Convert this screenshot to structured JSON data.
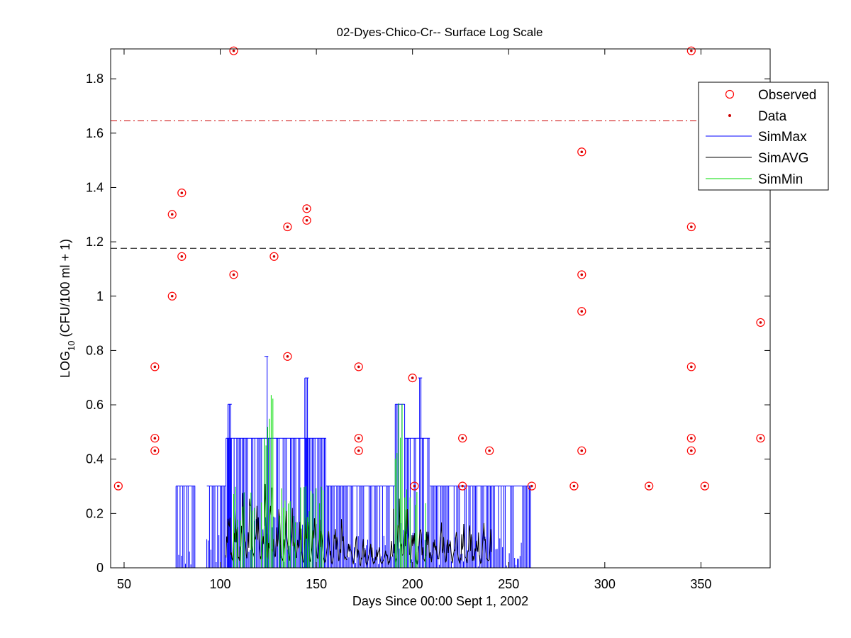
{
  "chart_data": {
    "type": "scatter",
    "title": "02-Dyes-Chico-Cr-- Surface Log Scale",
    "xlabel": "Days Since 00:00 Sept 1, 2002",
    "ylabel_main": "LOG",
    "ylabel_sub": "10",
    "ylabel_rest": " (CFU/100 ml + 1)",
    "xlim": [
      43,
      386
    ],
    "ylim": [
      0,
      1.91
    ],
    "xticks": [
      50,
      100,
      150,
      200,
      250,
      300,
      350
    ],
    "yticks": [
      0,
      0.2,
      0.4,
      0.6,
      0.8,
      1,
      1.2,
      1.4,
      1.6,
      1.8
    ],
    "grid": false,
    "legend_position": "top-right",
    "legend": [
      "Observed",
      "Data",
      "SimMax",
      "SimAVG",
      "SimMin"
    ],
    "reference_lines": [
      {
        "y": 1.645,
        "style": "dash-dot",
        "color": "#cc0000"
      },
      {
        "y": 1.176,
        "style": "dashed",
        "color": "#000000"
      }
    ],
    "colors": {
      "observed": "#ff0000",
      "data": "#cc0000",
      "simmax": "#0000ff",
      "simavg": "#000000",
      "simmin": "#00dd00"
    },
    "observed_points": [
      [
        47,
        0.301
      ],
      [
        66,
        0.74
      ],
      [
        66,
        0.477
      ],
      [
        66,
        0.431
      ],
      [
        75,
        1.301
      ],
      [
        75,
        1.0
      ],
      [
        80,
        1.38
      ],
      [
        80,
        1.146
      ],
      [
        107,
        1.903
      ],
      [
        107,
        1.079
      ],
      [
        128,
        1.146
      ],
      [
        135,
        1.255
      ],
      [
        135,
        0.778
      ],
      [
        145,
        1.322
      ],
      [
        145,
        1.279
      ],
      [
        172,
        0.74
      ],
      [
        172,
        0.477
      ],
      [
        172,
        0.431
      ],
      [
        200,
        0.699
      ],
      [
        201,
        0.301
      ],
      [
        226,
        0.477
      ],
      [
        226,
        0.301
      ],
      [
        240,
        0.431
      ],
      [
        262,
        0.301
      ],
      [
        284,
        0.301
      ],
      [
        288,
        1.531
      ],
      [
        288,
        1.079
      ],
      [
        288,
        0.944
      ],
      [
        288,
        0.431
      ],
      [
        323,
        0.301
      ],
      [
        345,
        1.903
      ],
      [
        345,
        1.255
      ],
      [
        345,
        0.74
      ],
      [
        345,
        0.477
      ],
      [
        345,
        0.431
      ],
      [
        352,
        0.301
      ],
      [
        381,
        0.903
      ],
      [
        381,
        0.477
      ]
    ],
    "sim_max_segments": [
      {
        "start": 77,
        "end": 87,
        "peak": 0.301
      },
      {
        "start": 93,
        "end": 103,
        "peak": 0.301
      },
      {
        "start": 103,
        "end": 118,
        "peak": 0.477
      },
      {
        "start": 104,
        "end": 106,
        "peak": 0.602
      },
      {
        "start": 118,
        "end": 133,
        "peak": 0.477
      },
      {
        "start": 123,
        "end": 125,
        "peak": 0.778
      },
      {
        "start": 133,
        "end": 143,
        "peak": 0.477
      },
      {
        "start": 143,
        "end": 155,
        "peak": 0.477
      },
      {
        "start": 144,
        "end": 146,
        "peak": 0.699
      },
      {
        "start": 155,
        "end": 191,
        "peak": 0.301
      },
      {
        "start": 191,
        "end": 196,
        "peak": 0.602
      },
      {
        "start": 196,
        "end": 209,
        "peak": 0.477
      },
      {
        "start": 203,
        "end": 205,
        "peak": 0.699
      },
      {
        "start": 209,
        "end": 262,
        "peak": 0.301
      }
    ],
    "sim_avg_segments": [
      {
        "start": 103,
        "end": 123,
        "peak": 0.28
      },
      {
        "start": 123,
        "end": 127,
        "peak": 0.36
      },
      {
        "start": 127,
        "end": 166,
        "peak": 0.23
      },
      {
        "start": 166,
        "end": 190,
        "peak": 0.12
      },
      {
        "start": 190,
        "end": 199,
        "peak": 0.28
      },
      {
        "start": 199,
        "end": 241,
        "peak": 0.18
      }
    ],
    "sim_min_segments": [
      {
        "start": 107,
        "end": 122,
        "peak": 0.301
      },
      {
        "start": 122,
        "end": 128,
        "peak": 0.699
      },
      {
        "start": 131,
        "end": 155,
        "peak": 0.301
      },
      {
        "start": 191,
        "end": 196,
        "peak": 0.699
      },
      {
        "start": 196,
        "end": 207,
        "peak": 0.301
      }
    ]
  }
}
